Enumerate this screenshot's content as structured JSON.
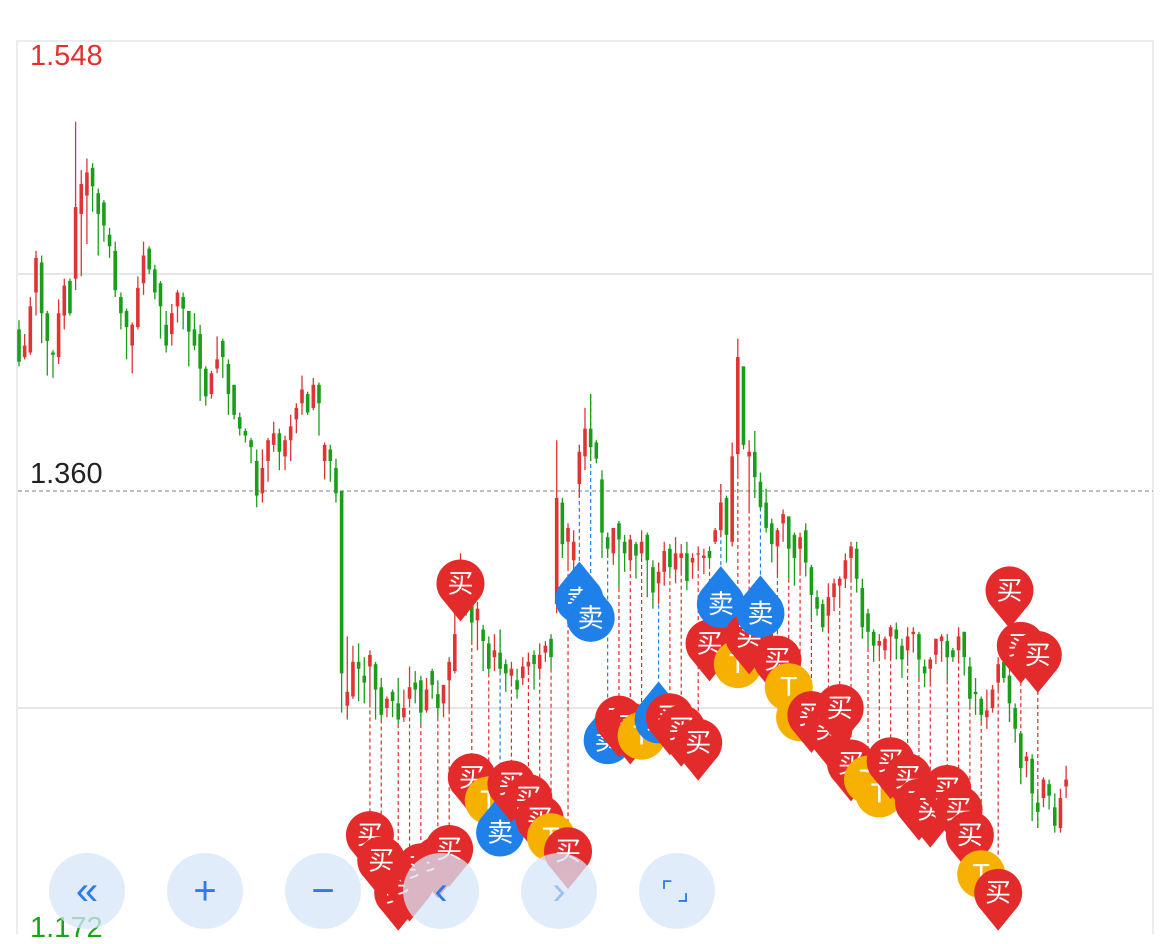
{
  "chart_data": {
    "type": "candlestick",
    "y_labels": {
      "max": "1.548",
      "ref": "1.360",
      "min": "1.172"
    },
    "ylim": [
      1.172,
      1.548
    ],
    "reference_line": 1.36,
    "colors": {
      "up": "#e03333",
      "down": "#1a9e1a",
      "buy": "#e32b2b",
      "sell": "#1f80ea",
      "t": "#f5b000",
      "grid": "#e6e6e6"
    },
    "candles": [
      [
        1.43,
        1.416,
        1.434,
        1.414
      ],
      [
        1.418,
        1.423,
        1.428,
        1.417
      ],
      [
        1.42,
        1.44,
        1.444,
        1.419
      ],
      [
        1.446,
        1.461,
        1.464,
        1.436
      ],
      [
        1.459,
        1.437,
        1.462,
        1.424
      ],
      [
        1.437,
        1.425,
        1.438,
        1.41
      ],
      [
        1.42,
        1.419,
        1.421,
        1.409
      ],
      [
        1.418,
        1.437,
        1.443,
        1.415
      ],
      [
        1.436,
        1.449,
        1.452,
        1.43
      ],
      [
        1.451,
        1.437,
        1.452,
        1.436
      ],
      [
        1.452,
        1.483,
        1.52,
        1.447
      ],
      [
        1.48,
        1.493,
        1.499,
        1.453
      ],
      [
        1.488,
        1.498,
        1.504,
        1.467
      ],
      [
        1.5,
        1.492,
        1.502,
        1.481
      ],
      [
        1.489,
        1.48,
        1.491,
        1.462
      ],
      [
        1.485,
        1.475,
        1.486,
        1.468
      ],
      [
        1.471,
        1.466,
        1.474,
        1.461
      ],
      [
        1.464,
        1.447,
        1.468,
        1.444
      ],
      [
        1.444,
        1.437,
        1.446,
        1.43
      ],
      [
        1.438,
        1.431,
        1.439,
        1.417
      ],
      [
        1.423,
        1.432,
        1.433,
        1.411
      ],
      [
        1.431,
        1.448,
        1.453,
        1.43
      ],
      [
        1.45,
        1.462,
        1.468,
        1.445
      ],
      [
        1.465,
        1.456,
        1.466,
        1.454
      ],
      [
        1.456,
        1.446,
        1.458,
        1.443
      ],
      [
        1.45,
        1.44,
        1.451,
        1.426
      ],
      [
        1.432,
        1.423,
        1.438,
        1.42
      ],
      [
        1.428,
        1.437,
        1.441,
        1.423
      ],
      [
        1.44,
        1.446,
        1.447,
        1.433
      ],
      [
        1.444,
        1.439,
        1.446,
        1.43
      ],
      [
        1.438,
        1.429,
        1.438,
        1.414
      ],
      [
        1.43,
        1.423,
        1.437,
        1.421
      ],
      [
        1.428,
        1.413,
        1.432,
        1.399
      ],
      [
        1.413,
        1.401,
        1.414,
        1.397
      ],
      [
        1.402,
        1.411,
        1.412,
        1.4
      ],
      [
        1.413,
        1.417,
        1.427,
        1.411
      ],
      [
        1.425,
        1.418,
        1.426,
        1.409
      ],
      [
        1.415,
        1.402,
        1.417,
        1.393
      ],
      [
        1.406,
        1.393,
        1.406,
        1.391
      ],
      [
        1.392,
        1.387,
        1.394,
        1.384
      ],
      [
        1.386,
        1.384,
        1.387,
        1.381
      ],
      [
        1.382,
        1.379,
        1.383,
        1.372
      ],
      [
        1.373,
        1.358,
        1.378,
        1.353
      ],
      [
        1.359,
        1.37,
        1.378,
        1.355
      ],
      [
        1.373,
        1.382,
        1.383,
        1.364
      ],
      [
        1.38,
        1.385,
        1.39,
        1.377
      ],
      [
        1.385,
        1.377,
        1.387,
        1.369
      ],
      [
        1.375,
        1.382,
        1.384,
        1.369
      ],
      [
        1.382,
        1.388,
        1.393,
        1.373
      ],
      [
        1.391,
        1.396,
        1.398,
        1.385
      ],
      [
        1.398,
        1.404,
        1.41,
        1.393
      ],
      [
        1.402,
        1.394,
        1.403,
        1.393
      ],
      [
        1.396,
        1.406,
        1.409,
        1.395
      ],
      [
        1.406,
        1.398,
        1.407,
        1.384
      ],
      [
        1.373,
        1.38,
        1.381,
        1.365
      ],
      [
        1.378,
        1.373,
        1.38,
        1.364
      ],
      [
        1.37,
        1.359,
        1.374,
        1.355
      ],
      [
        1.36,
        1.281,
        1.321,
        1.264
      ],
      [
        1.267,
        1.273,
        1.297,
        1.261
      ],
      [
        1.271,
        1.286,
        1.293,
        1.27
      ],
      [
        1.286,
        1.283,
        1.294,
        1.269
      ],
      [
        1.28,
        1.277,
        1.288,
        1.268
      ],
      [
        1.284,
        1.289,
        1.291,
        1.268
      ],
      [
        1.285,
        1.274,
        1.286,
        1.261
      ],
      [
        1.275,
        1.263,
        1.279,
        1.261
      ],
      [
        1.266,
        1.27,
        1.271,
        1.262
      ],
      [
        1.273,
        1.269,
        1.274,
        1.262
      ],
      [
        1.268,
        1.261,
        1.279,
        1.259
      ],
      [
        1.262,
        1.266,
        1.274,
        1.26
      ],
      [
        1.27,
        1.275,
        1.284,
        1.268
      ],
      [
        1.277,
        1.274,
        1.282,
        1.268
      ],
      [
        1.278,
        1.264,
        1.28,
        1.259
      ],
      [
        1.265,
        1.274,
        1.279,
        1.264
      ],
      [
        1.282,
        1.276,
        1.283,
        1.27
      ],
      [
        1.272,
        1.266,
        1.278,
        1.262
      ],
      [
        1.268,
        1.276,
        1.276,
        1.262
      ],
      [
        1.278,
        1.286,
        1.288,
        1.265
      ],
      [
        1.282,
        1.298,
        1.317,
        1.281
      ],
      [
        1.308,
        1.326,
        1.333,
        1.305
      ],
      [
        1.325,
        1.315,
        1.328,
        1.306
      ],
      [
        1.317,
        1.303,
        1.318,
        1.295
      ],
      [
        1.304,
        1.309,
        1.312,
        1.291
      ],
      [
        1.3,
        1.295,
        1.302,
        1.282
      ],
      [
        1.294,
        1.283,
        1.297,
        1.281
      ],
      [
        1.288,
        1.291,
        1.298,
        1.282
      ],
      [
        1.29,
        1.283,
        1.3,
        1.281
      ],
      [
        1.285,
        1.281,
        1.287,
        1.273
      ],
      [
        1.28,
        1.283,
        1.286,
        1.277
      ],
      [
        1.278,
        1.274,
        1.283,
        1.27
      ],
      [
        1.279,
        1.284,
        1.288,
        1.276
      ],
      [
        1.284,
        1.286,
        1.29,
        1.282
      ],
      [
        1.289,
        1.285,
        1.291,
        1.274
      ],
      [
        1.283,
        1.289,
        1.294,
        1.28
      ],
      [
        1.29,
        1.293,
        1.295,
        1.286
      ],
      [
        1.296,
        1.288,
        1.298,
        1.283
      ],
      [
        1.311,
        1.357,
        1.382,
        1.307
      ],
      [
        1.355,
        1.337,
        1.357,
        1.331
      ],
      [
        1.338,
        1.344,
        1.346,
        1.327
      ],
      [
        1.33,
        1.338,
        1.343,
        1.31
      ],
      [
        1.363,
        1.377,
        1.38,
        1.357
      ],
      [
        1.375,
        1.387,
        1.396,
        1.369
      ],
      [
        1.387,
        1.379,
        1.402,
        1.373
      ],
      [
        1.381,
        1.374,
        1.382,
        1.372
      ],
      [
        1.365,
        1.342,
        1.369,
        1.331
      ],
      [
        1.34,
        1.335,
        1.342,
        1.331
      ],
      [
        1.333,
        1.344,
        1.344,
        1.328
      ],
      [
        1.346,
        1.339,
        1.347,
        1.318
      ],
      [
        1.338,
        1.333,
        1.341,
        1.325
      ],
      [
        1.33,
        1.339,
        1.341,
        1.327
      ],
      [
        1.337,
        1.332,
        1.338,
        1.322
      ],
      [
        1.333,
        1.338,
        1.343,
        1.331
      ],
      [
        1.341,
        1.33,
        1.342,
        1.314
      ],
      [
        1.327,
        1.316,
        1.33,
        1.309
      ],
      [
        1.32,
        1.325,
        1.329,
        1.311
      ],
      [
        1.325,
        1.334,
        1.338,
        1.319
      ],
      [
        1.335,
        1.327,
        1.337,
        1.324
      ],
      [
        1.326,
        1.333,
        1.34,
        1.32
      ],
      [
        1.331,
        1.333,
        1.337,
        1.325
      ],
      [
        1.333,
        1.321,
        1.338,
        1.317
      ],
      [
        1.329,
        1.331,
        1.333,
        1.322
      ],
      [
        1.333,
        1.333,
        1.336,
        1.327
      ],
      [
        1.331,
        1.332,
        1.335,
        1.324
      ],
      [
        1.334,
        1.331,
        1.336,
        1.328
      ],
      [
        1.338,
        1.343,
        1.344,
        1.337
      ],
      [
        1.343,
        1.355,
        1.363,
        1.34
      ],
      [
        1.357,
        1.341,
        1.358,
        1.329
      ],
      [
        1.338,
        1.375,
        1.381,
        1.336
      ],
      [
        1.376,
        1.418,
        1.426,
        1.367
      ],
      [
        1.414,
        1.38,
        1.414,
        1.378
      ],
      [
        1.375,
        1.377,
        1.382,
        1.352
      ],
      [
        1.377,
        1.366,
        1.386,
        1.357
      ],
      [
        1.364,
        1.353,
        1.368,
        1.352
      ],
      [
        1.355,
        1.344,
        1.361,
        1.342
      ],
      [
        1.346,
        1.337,
        1.348,
        1.329
      ],
      [
        1.336,
        1.343,
        1.344,
        1.324
      ],
      [
        1.346,
        1.35,
        1.352,
        1.338
      ],
      [
        1.349,
        1.335,
        1.349,
        1.322
      ],
      [
        1.341,
        1.331,
        1.342,
        1.319
      ],
      [
        1.335,
        1.34,
        1.342,
        1.325
      ],
      [
        1.343,
        1.329,
        1.346,
        1.323
      ],
      [
        1.327,
        1.315,
        1.328,
        1.305
      ],
      [
        1.314,
        1.309,
        1.317,
        1.306
      ],
      [
        1.311,
        1.301,
        1.313,
        1.299
      ],
      [
        1.306,
        1.314,
        1.32,
        1.3
      ],
      [
        1.314,
        1.32,
        1.322,
        1.308
      ],
      [
        1.319,
        1.322,
        1.323,
        1.311
      ],
      [
        1.322,
        1.33,
        1.333,
        1.318
      ],
      [
        1.331,
        1.336,
        1.338,
        1.322
      ],
      [
        1.335,
        1.322,
        1.338,
        1.316
      ],
      [
        1.318,
        1.301,
        1.322,
        1.296
      ],
      [
        1.307,
        1.299,
        1.309,
        1.292
      ],
      [
        1.299,
        1.293,
        1.3,
        1.286
      ],
      [
        1.293,
        1.295,
        1.298,
        1.288
      ],
      [
        1.291,
        1.296,
        1.297,
        1.287
      ],
      [
        1.297,
        1.301,
        1.302,
        1.288
      ],
      [
        1.3,
        1.296,
        1.303,
        1.287
      ],
      [
        1.293,
        1.287,
        1.296,
        1.279
      ],
      [
        1.291,
        1.297,
        1.301,
        1.286
      ],
      [
        1.298,
        1.299,
        1.301,
        1.29
      ],
      [
        1.298,
        1.287,
        1.299,
        1.279
      ],
      [
        1.284,
        1.281,
        1.287,
        1.275
      ],
      [
        1.283,
        1.287,
        1.288,
        1.277
      ],
      [
        1.289,
        1.296,
        1.296,
        1.285
      ],
      [
        1.295,
        1.297,
        1.298,
        1.286
      ],
      [
        1.295,
        1.288,
        1.298,
        1.278
      ],
      [
        1.291,
        1.288,
        1.292,
        1.286
      ],
      [
        1.291,
        1.297,
        1.301,
        1.287
      ],
      [
        1.299,
        1.288,
        1.299,
        1.28
      ],
      [
        1.284,
        1.27,
        1.288,
        1.267
      ],
      [
        1.273,
        1.272,
        1.279,
        1.263
      ],
      [
        1.27,
        1.263,
        1.271,
        1.26
      ],
      [
        1.262,
        1.265,
        1.274,
        1.257
      ],
      [
        1.266,
        1.274,
        1.276,
        1.264
      ],
      [
        1.277,
        1.285,
        1.288,
        1.274
      ],
      [
        1.286,
        1.279,
        1.29,
        1.277
      ],
      [
        1.28,
        1.268,
        1.281,
        1.26
      ],
      [
        1.266,
        1.257,
        1.268,
        1.251
      ],
      [
        1.255,
        1.24,
        1.256,
        1.233
      ],
      [
        1.243,
        1.245,
        1.247,
        1.236
      ],
      [
        1.244,
        1.229,
        1.246,
        1.217
      ],
      [
        1.225,
        1.221,
        1.23,
        1.214
      ],
      [
        1.227,
        1.235,
        1.236,
        1.223
      ],
      [
        1.233,
        1.228,
        1.235,
        1.222
      ],
      [
        1.223,
        1.215,
        1.229,
        1.212
      ],
      [
        1.214,
        1.227,
        1.231,
        1.212
      ],
      [
        1.232,
        1.235,
        1.241,
        1.227
      ]
    ],
    "markers": [
      {
        "type": "buy",
        "text": "买",
        "v": 1.211
      },
      {
        "type": "buy",
        "text": "买",
        "v": 1.2
      },
      {
        "type": "buy",
        "text": "买",
        "v": 1.186
      },
      {
        "type": "buy",
        "text": "买",
        "v": 1.19
      },
      {
        "type": "buy",
        "text": "买",
        "v": 1.197
      },
      {
        "type": "buy",
        "text": "买",
        "v": 1.2
      },
      {
        "type": "buy",
        "text": "买",
        "v": 1.205
      },
      {
        "type": "buy",
        "text": "买",
        "v": 1.32
      },
      {
        "type": "buy",
        "text": "买",
        "v": 1.236
      },
      {
        "type": "t",
        "text": "T",
        "v": 1.226
      },
      {
        "type": "sell",
        "text": "卖",
        "v": 1.212
      },
      {
        "type": "buy",
        "text": "买",
        "v": 1.233
      },
      {
        "type": "buy",
        "text": "买",
        "v": 1.227
      },
      {
        "type": "buy",
        "text": "买",
        "v": 1.218
      },
      {
        "type": "t",
        "text": "T",
        "v": 1.21
      },
      {
        "type": "buy",
        "text": "买",
        "v": 1.204
      },
      {
        "type": "sell",
        "text": "卖",
        "v": 1.313
      },
      {
        "type": "sell",
        "text": "卖",
        "v": 1.305
      },
      {
        "type": "sell",
        "text": "卖",
        "v": 1.252
      },
      {
        "type": "buy",
        "text": "买",
        "v": 1.261
      },
      {
        "type": "buy",
        "text": "买",
        "v": 1.258
      },
      {
        "type": "t",
        "text": "T",
        "v": 1.254
      },
      {
        "type": "sell",
        "text": "卖",
        "v": 1.261
      },
      {
        "type": "buy",
        "text": "买",
        "v": 1.262
      },
      {
        "type": "buy",
        "text": "买",
        "v": 1.257
      },
      {
        "type": "buy",
        "text": "买",
        "v": 1.251
      },
      {
        "type": "buy",
        "text": "买",
        "v": 1.294
      },
      {
        "type": "sell",
        "text": "卖",
        "v": 1.311
      },
      {
        "type": "t",
        "text": "T",
        "v": 1.285
      },
      {
        "type": "buy",
        "text": "买",
        "v": 1.297
      },
      {
        "type": "sell",
        "text": "卖",
        "v": 1.307
      },
      {
        "type": "buy",
        "text": "买",
        "v": 1.287
      },
      {
        "type": "t",
        "text": "T",
        "v": 1.275
      },
      {
        "type": "t",
        "text": "T",
        "v": 1.262
      },
      {
        "type": "buy",
        "text": "买",
        "v": 1.263
      },
      {
        "type": "buy",
        "text": "买",
        "v": 1.257
      },
      {
        "type": "buy",
        "text": "买",
        "v": 1.266
      },
      {
        "type": "buy",
        "text": "买",
        "v": 1.242
      },
      {
        "type": "t",
        "text": "T",
        "v": 1.235
      },
      {
        "type": "t",
        "text": "T",
        "v": 1.229
      },
      {
        "type": "buy",
        "text": "买",
        "v": 1.243
      },
      {
        "type": "buy",
        "text": "买",
        "v": 1.236
      },
      {
        "type": "buy",
        "text": "买",
        "v": 1.225
      },
      {
        "type": "buy",
        "text": "买",
        "v": 1.222
      },
      {
        "type": "buy",
        "text": "买",
        "v": 1.231
      },
      {
        "type": "buy",
        "text": "买",
        "v": 1.222
      },
      {
        "type": "buy",
        "text": "买",
        "v": 1.211
      },
      {
        "type": "t",
        "text": "T",
        "v": 1.194
      },
      {
        "type": "buy",
        "text": "买",
        "v": 1.186
      },
      {
        "type": "buy",
        "text": "买",
        "v": 1.317
      },
      {
        "type": "buy",
        "text": "买",
        "v": 1.293
      },
      {
        "type": "buy",
        "text": "买",
        "v": 1.289
      }
    ],
    "grid_lines": [
      1.454,
      1.266
    ],
    "grid": true
  },
  "toolbar": {
    "buttons": [
      {
        "name": "scroll-left-fast-button",
        "glyph": "«",
        "disabled": false
      },
      {
        "name": "zoom-in-button",
        "glyph": "+",
        "disabled": false
      },
      {
        "name": "zoom-out-button",
        "glyph": "−",
        "disabled": false
      },
      {
        "name": "scroll-left-button",
        "glyph": "‹",
        "disabled": false
      },
      {
        "name": "scroll-right-button",
        "glyph": "›",
        "disabled": true
      },
      {
        "name": "fullscreen-button",
        "glyph": "⌜⌟",
        "disabled": false
      }
    ]
  }
}
